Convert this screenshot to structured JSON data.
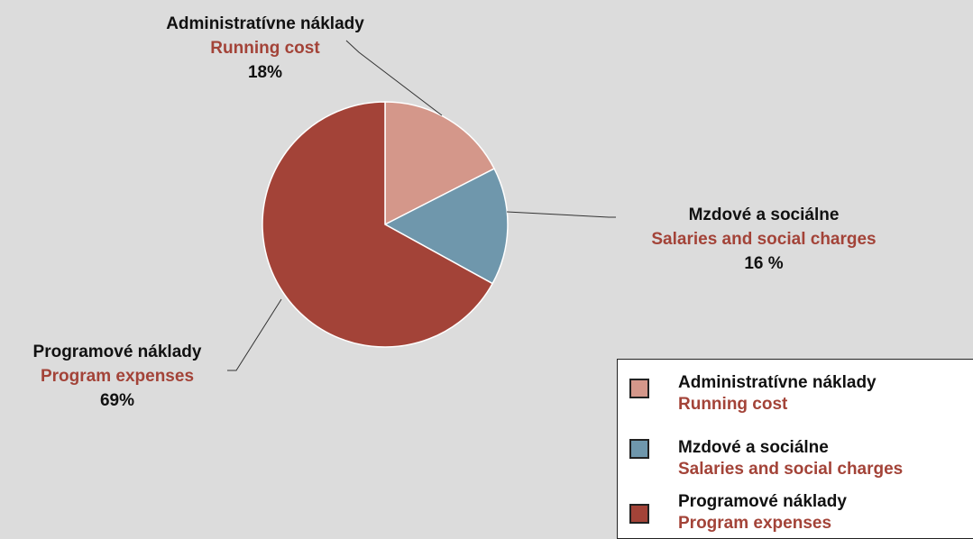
{
  "chart_data": {
    "type": "pie",
    "slices": [
      {
        "label": "Administratívne náklady",
        "label_en": "Running cost",
        "value": 18,
        "value_text": "18%",
        "color": "#d4978a"
      },
      {
        "label": "Mzdové a sociálne",
        "label_en": "Salaries and social charges",
        "value": 16,
        "value_text": "16 %",
        "color": "#6f97ac"
      },
      {
        "label": "Programové náklady",
        "label_en": "Program expenses",
        "value": 69,
        "value_text": "69%",
        "color": "#a34338"
      }
    ]
  },
  "colors": {
    "background": "#dcdcdc",
    "english_label": "#a34338",
    "local_label": "#111111"
  },
  "legend": {
    "placement": "bottom-right",
    "items": [
      {
        "label": "Administratívne náklady",
        "label_en": "Running cost",
        "color": "#d4978a"
      },
      {
        "label": "Mzdové a sociálne",
        "label_en": "Salaries and social charges",
        "color": "#6f97ac"
      },
      {
        "label": "Programové náklady",
        "label_en": "Program expenses",
        "color": "#a34338"
      }
    ]
  }
}
